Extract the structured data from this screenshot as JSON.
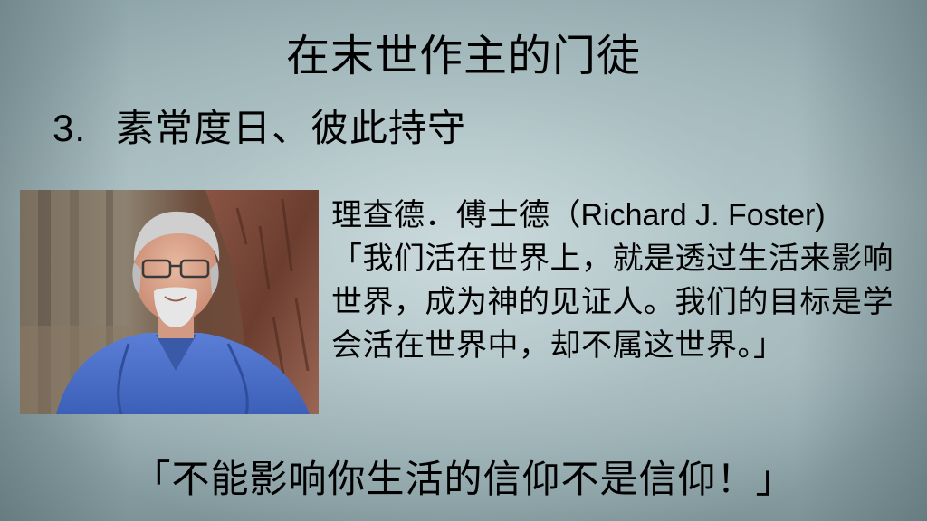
{
  "slide": {
    "title": "在末世作主的门徒",
    "subtitle_number": "3.",
    "subtitle_text": "素常度日、彼此持守",
    "quote": {
      "author_cn": "理查德．傅士德",
      "author_en": "（Richard J. Foster)",
      "text": "「我们活在世界上，就是透过生活来影响世界，成为神的见证人。我们的目标是学会活在世界中，却不属这世界。」"
    },
    "bottom_quote": "「不能影响你生活的信仰不是信仰！」"
  },
  "colors": {
    "background": "#a8bdc0",
    "text": "#000000"
  },
  "photo": {
    "subject": "portrait-photo"
  }
}
